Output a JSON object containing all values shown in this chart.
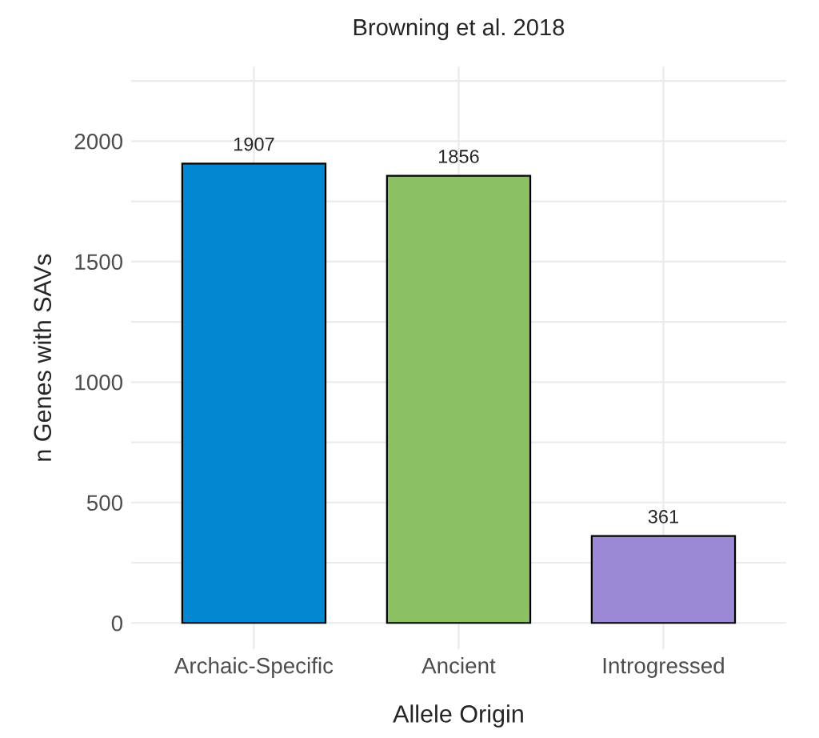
{
  "chart_data": {
    "type": "bar",
    "title": "Browning et al. 2018",
    "xlabel": "Allele Origin",
    "ylabel": "n Genes with SAVs",
    "categories": [
      "Archaic-Specific",
      "Ancient",
      "Introgressed"
    ],
    "values": [
      1907,
      1856,
      361
    ],
    "colors": [
      "#0288d1",
      "#8bc163",
      "#9b89d6"
    ],
    "data_labels": true,
    "ylim": [
      -110,
      2310
    ],
    "yticks": [
      0,
      {
        "value": 250,
        "label": null
      },
      500,
      {
        "value": 750,
        "label": null
      },
      1000,
      {
        "value": 1250,
        "label": null
      },
      1500,
      {
        "value": 1750,
        "label": null
      },
      2000,
      {
        "value": 2250,
        "label": null
      }
    ],
    "grid": true
  }
}
